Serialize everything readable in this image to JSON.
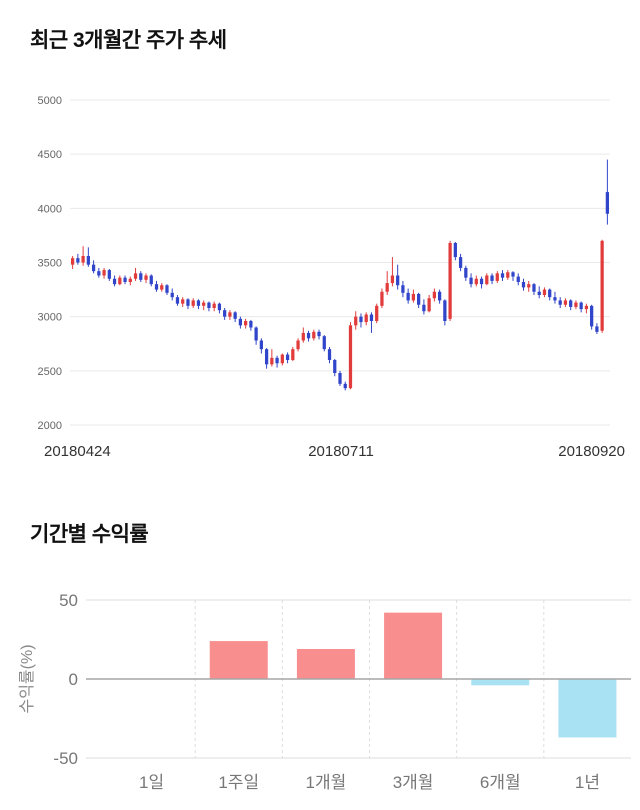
{
  "titles": {
    "price_trend": "최근 3개월간 주가 추세",
    "period_returns": "기간별 수익률"
  },
  "chart_data": [
    {
      "type": "candlestick",
      "title": "최근 3개월간 주가 추세",
      "x_labels": [
        "20180424",
        "20180711",
        "20180920"
      ],
      "y_ticks": [
        5000,
        4500,
        4000,
        3500,
        3000,
        2500,
        2000
      ],
      "ylim": [
        2000,
        5000
      ],
      "grid": true,
      "up_color": "#e23b3b",
      "down_color": "#3045c9",
      "grid_color": "#e9e9e9",
      "tick_color": "#666666",
      "date_color": "#333333",
      "candles_ohlc": [
        [
          3480,
          3560,
          3440,
          3540
        ],
        [
          3540,
          3580,
          3480,
          3500
        ],
        [
          3500,
          3650,
          3470,
          3560
        ],
        [
          3560,
          3640,
          3460,
          3480
        ],
        [
          3480,
          3520,
          3400,
          3420
        ],
        [
          3420,
          3450,
          3360,
          3380
        ],
        [
          3380,
          3450,
          3350,
          3430
        ],
        [
          3430,
          3440,
          3330,
          3350
        ],
        [
          3350,
          3380,
          3280,
          3300
        ],
        [
          3300,
          3380,
          3290,
          3360
        ],
        [
          3360,
          3380,
          3300,
          3320
        ],
        [
          3320,
          3370,
          3290,
          3350
        ],
        [
          3350,
          3450,
          3330,
          3400
        ],
        [
          3400,
          3420,
          3320,
          3340
        ],
        [
          3340,
          3400,
          3310,
          3380
        ],
        [
          3380,
          3390,
          3280,
          3300
        ],
        [
          3300,
          3330,
          3230,
          3250
        ],
        [
          3250,
          3310,
          3230,
          3290
        ],
        [
          3290,
          3300,
          3200,
          3220
        ],
        [
          3220,
          3260,
          3150,
          3180
        ],
        [
          3180,
          3200,
          3100,
          3120
        ],
        [
          3120,
          3180,
          3090,
          3160
        ],
        [
          3160,
          3170,
          3070,
          3100
        ],
        [
          3100,
          3170,
          3080,
          3150
        ],
        [
          3150,
          3160,
          3070,
          3100
        ],
        [
          3100,
          3150,
          3060,
          3130
        ],
        [
          3130,
          3140,
          3050,
          3080
        ],
        [
          3080,
          3140,
          3050,
          3120
        ],
        [
          3120,
          3130,
          3030,
          3060
        ],
        [
          3060,
          3080,
          2970,
          3000
        ],
        [
          3000,
          3060,
          2970,
          3040
        ],
        [
          3040,
          3050,
          2950,
          2980
        ],
        [
          2980,
          3000,
          2890,
          2920
        ],
        [
          2920,
          2980,
          2890,
          2960
        ],
        [
          2960,
          2970,
          2870,
          2900
        ],
        [
          2900,
          2910,
          2740,
          2780
        ],
        [
          2780,
          2800,
          2660,
          2700
        ],
        [
          2700,
          2710,
          2520,
          2560
        ],
        [
          2560,
          2700,
          2540,
          2620
        ],
        [
          2620,
          2640,
          2530,
          2570
        ],
        [
          2570,
          2660,
          2550,
          2650
        ],
        [
          2650,
          2670,
          2570,
          2600
        ],
        [
          2600,
          2720,
          2590,
          2700
        ],
        [
          2700,
          2800,
          2680,
          2780
        ],
        [
          2780,
          2900,
          2760,
          2850
        ],
        [
          2850,
          2870,
          2770,
          2800
        ],
        [
          2800,
          2880,
          2780,
          2860
        ],
        [
          2860,
          2880,
          2790,
          2820
        ],
        [
          2820,
          2830,
          2680,
          2700
        ],
        [
          2700,
          2720,
          2570,
          2600
        ],
        [
          2600,
          2610,
          2450,
          2480
        ],
        [
          2480,
          2500,
          2360,
          2380
        ],
        [
          2380,
          2400,
          2320,
          2340
        ],
        [
          2340,
          2950,
          2330,
          2920
        ],
        [
          2920,
          3050,
          2880,
          3000
        ],
        [
          3000,
          3030,
          2900,
          2950
        ],
        [
          2950,
          3040,
          2920,
          3020
        ],
        [
          3020,
          3040,
          2850,
          2960
        ],
        [
          2960,
          3120,
          2940,
          3100
        ],
        [
          3100,
          3260,
          3080,
          3230
        ],
        [
          3230,
          3420,
          3200,
          3310
        ],
        [
          3310,
          3550,
          3280,
          3380
        ],
        [
          3380,
          3480,
          3250,
          3290
        ],
        [
          3290,
          3330,
          3180,
          3220
        ],
        [
          3220,
          3260,
          3120,
          3150
        ],
        [
          3150,
          3250,
          3130,
          3210
        ],
        [
          3210,
          3220,
          3080,
          3110
        ],
        [
          3110,
          3160,
          3020,
          3050
        ],
        [
          3050,
          3200,
          3040,
          3170
        ],
        [
          3170,
          3260,
          3140,
          3230
        ],
        [
          3230,
          3250,
          3120,
          3150
        ],
        [
          3150,
          3160,
          2920,
          2960
        ],
        [
          2980,
          3700,
          2960,
          3680
        ],
        [
          3680,
          3690,
          3520,
          3550
        ],
        [
          3550,
          3580,
          3420,
          3450
        ],
        [
          3450,
          3470,
          3330,
          3360
        ],
        [
          3360,
          3400,
          3270,
          3300
        ],
        [
          3300,
          3380,
          3280,
          3350
        ],
        [
          3350,
          3370,
          3260,
          3300
        ],
        [
          3300,
          3400,
          3290,
          3380
        ],
        [
          3380,
          3400,
          3300,
          3330
        ],
        [
          3330,
          3420,
          3310,
          3400
        ],
        [
          3400,
          3430,
          3330,
          3360
        ],
        [
          3360,
          3430,
          3340,
          3410
        ],
        [
          3410,
          3420,
          3330,
          3370
        ],
        [
          3370,
          3400,
          3290,
          3320
        ],
        [
          3320,
          3350,
          3240,
          3270
        ],
        [
          3270,
          3330,
          3230,
          3300
        ],
        [
          3300,
          3310,
          3200,
          3230
        ],
        [
          3230,
          3280,
          3170,
          3200
        ],
        [
          3200,
          3270,
          3180,
          3250
        ],
        [
          3250,
          3260,
          3150,
          3180
        ],
        [
          3180,
          3230,
          3120,
          3150
        ],
        [
          3150,
          3180,
          3080,
          3110
        ],
        [
          3110,
          3170,
          3090,
          3150
        ],
        [
          3150,
          3160,
          3060,
          3090
        ],
        [
          3090,
          3150,
          3070,
          3130
        ],
        [
          3130,
          3140,
          3040,
          3070
        ],
        [
          3070,
          3120,
          3030,
          3100
        ],
        [
          3100,
          3110,
          2880,
          2910
        ],
        [
          2910,
          2940,
          2840,
          2860
        ],
        [
          2870,
          3710,
          2850,
          3700
        ],
        [
          4150,
          4450,
          3850,
          3950
        ]
      ]
    },
    {
      "type": "bar",
      "title": "기간별 수익률",
      "categories": [
        "1일",
        "1주일",
        "1개월",
        "3개월",
        "6개월",
        "1년"
      ],
      "values": [
        0,
        24,
        19,
        42,
        -4,
        -37
      ],
      "ylabel": "수익률(%)",
      "yticks": [
        50,
        0,
        -50
      ],
      "ylim": [
        -50,
        50
      ],
      "legend": false,
      "positive_color": "#f88e8e",
      "negative_color": "#a9e2f3",
      "zero_line_color": "#a6a6a6",
      "grid_color": "#dddddd",
      "label_color": "#777777",
      "ylabel_color": "#888888"
    }
  ]
}
